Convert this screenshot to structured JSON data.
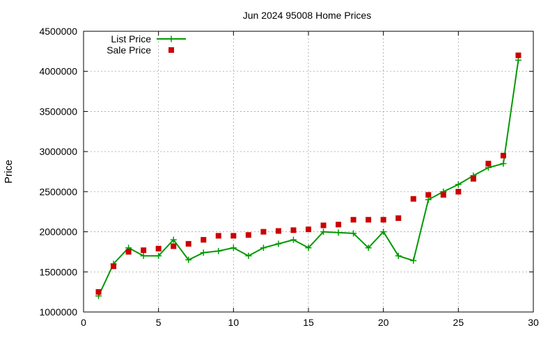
{
  "chart_data": {
    "type": "line",
    "title": "Jun 2024 95008 Home Prices",
    "xlabel": "",
    "ylabel": "Price",
    "xlim": [
      0,
      30
    ],
    "ylim": [
      1000000,
      4500000
    ],
    "xticks": [
      0,
      5,
      10,
      15,
      20,
      25,
      30
    ],
    "yticks": [
      1000000,
      1500000,
      2000000,
      2500000,
      3000000,
      3500000,
      4000000,
      4500000
    ],
    "grid": true,
    "legend_position": "top-left",
    "x": [
      1,
      2,
      3,
      4,
      5,
      6,
      7,
      8,
      9,
      10,
      11,
      12,
      13,
      14,
      15,
      16,
      17,
      18,
      19,
      20,
      21,
      22,
      23,
      24,
      25,
      26,
      27,
      28,
      29
    ],
    "series": [
      {
        "name": "List Price",
        "style": "linespoints",
        "marker": "plus",
        "color": "#009900",
        "values": [
          1200000,
          1600000,
          1800000,
          1700000,
          1700000,
          1900000,
          1650000,
          1740000,
          1760000,
          1800000,
          1700000,
          1800000,
          1850000,
          1900000,
          1800000,
          2000000,
          1990000,
          1980000,
          1800000,
          2000000,
          1700000,
          1640000,
          2400000,
          2500000,
          2590000,
          2700000,
          2800000,
          2850000,
          4140000
        ]
      },
      {
        "name": "Sale Price",
        "style": "points",
        "marker": "square",
        "color": "#cc0000",
        "values": [
          1250000,
          1570000,
          1750000,
          1770000,
          1790000,
          1820000,
          1850000,
          1900000,
          1950000,
          1950000,
          1960000,
          2000000,
          2010000,
          2020000,
          2030000,
          2080000,
          2090000,
          2150000,
          2150000,
          2150000,
          2170000,
          2410000,
          2460000,
          2460000,
          2500000,
          2660000,
          2850000,
          2950000,
          4200000
        ]
      }
    ]
  }
}
